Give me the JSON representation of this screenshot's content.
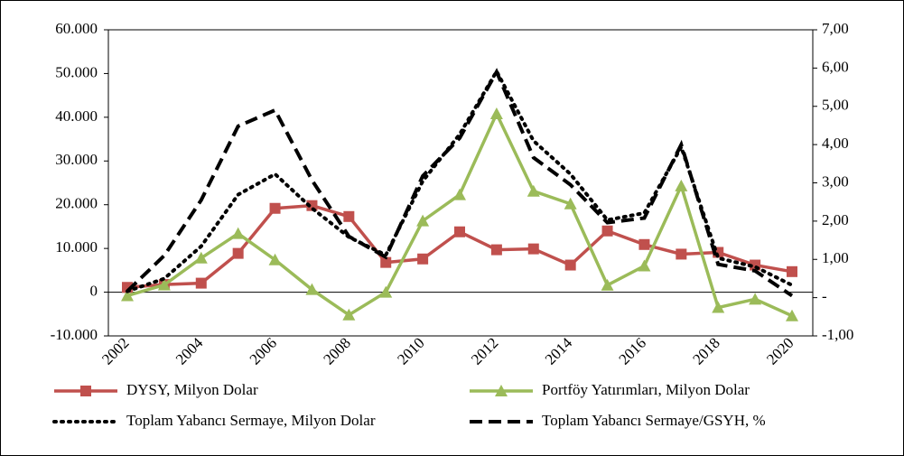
{
  "chart_data": {
    "type": "line",
    "categories": [
      "2002",
      null,
      "2004",
      null,
      "2006",
      null,
      "2008",
      null,
      "2010",
      null,
      "2012",
      null,
      "2014",
      null,
      "2016",
      null,
      "2018",
      null,
      "2020"
    ],
    "ylim": [
      -10000,
      60000
    ],
    "yticks": [
      {
        "value": -10000,
        "label": "-10.000"
      },
      0,
      {
        "value": 10000,
        "label": "10.000"
      },
      {
        "value": 20000,
        "label": "20.000"
      },
      {
        "value": 30000,
        "label": "30.000"
      },
      {
        "value": 40000,
        "label": "40.000"
      },
      {
        "value": 50000,
        "label": "50.000"
      },
      {
        "value": 60000,
        "label": "60.000"
      }
    ],
    "y2lim": [
      -1,
      7
    ],
    "y2ticks": [
      {
        "value": -1,
        "label": "-1,00"
      },
      {
        "value": 0,
        "label": "-"
      },
      {
        "value": 1,
        "label": "1,00"
      },
      {
        "value": 2,
        "label": "2,00"
      },
      {
        "value": 3,
        "label": "3,00"
      },
      {
        "value": 4,
        "label": "4,00"
      },
      {
        "value": 5,
        "label": "5,00"
      },
      {
        "value": 6,
        "label": "6,00"
      },
      {
        "value": 7,
        "label": "7,00"
      }
    ],
    "series": [
      {
        "name": "DYSY, Milyon Dolar",
        "color": "#c0504d",
        "marker": "square",
        "line_style": "solid",
        "values": [
          1100,
          1750,
          2060,
          8870,
          19170,
          19800,
          17300,
          6800,
          7600,
          13800,
          9700,
          9900,
          6200,
          14000,
          10900,
          8700,
          9100,
          6200,
          4700
        ]
      },
      {
        "name": "Portföy Yatırımları, Milyon Dolar",
        "color": "#9bbb59",
        "marker": "triangle",
        "line_style": "solid",
        "values": [
          -800,
          1650,
          7800,
          13400,
          7400,
          600,
          -5200,
          0,
          16300,
          22300,
          40800,
          23100,
          20200,
          1600,
          6000,
          24300,
          -3500,
          -1600,
          -5400
        ]
      },
      {
        "name": "Toplam Yabancı Sermaye, Milyon Dolar",
        "color": "#000000",
        "marker": "none",
        "line_style": "dotted",
        "values": [
          200,
          3100,
          10500,
          22300,
          27000,
          19200,
          12600,
          8500,
          25400,
          36100,
          50500,
          34600,
          27000,
          16500,
          18100,
          33200,
          7800,
          5800,
          1600
        ]
      },
      {
        "name": "Toplam Yabancı Sermaye/GSYH, %",
        "color": "#000000",
        "marker": "none",
        "line_style": "dashed",
        "axis": "y2",
        "values": [
          0.17,
          1.1,
          2.55,
          4.48,
          4.9,
          3.07,
          1.6,
          1.06,
          3.18,
          4.17,
          5.9,
          3.66,
          2.95,
          1.96,
          2.08,
          4.0,
          0.87,
          0.7,
          0.05
        ]
      }
    ]
  }
}
